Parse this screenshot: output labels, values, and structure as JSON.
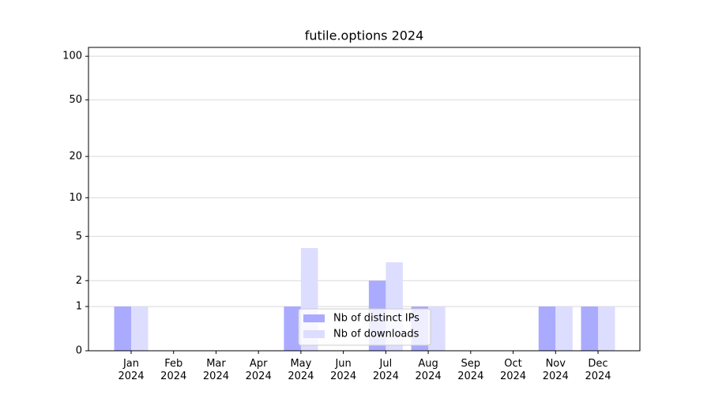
{
  "chart_data": {
    "type": "bar",
    "title": "futile.options 2024",
    "categories": [
      "Jan\n2024",
      "Feb\n2024",
      "Mar\n2024",
      "Apr\n2024",
      "May\n2024",
      "Jun\n2024",
      "Jul\n2024",
      "Aug\n2024",
      "Sep\n2024",
      "Oct\n2024",
      "Nov\n2024",
      "Dec\n2024"
    ],
    "series": [
      {
        "name": "Nb of distinct IPs",
        "color": "#aaaaff",
        "values": [
          1,
          0,
          0,
          0,
          1,
          0,
          2,
          1,
          0,
          0,
          1,
          1
        ]
      },
      {
        "name": "Nb of downloads",
        "color": "#ddddff",
        "values": [
          1,
          0,
          0,
          0,
          4,
          0,
          3,
          1,
          0,
          0,
          1,
          1
        ]
      }
    ],
    "yscale": "log1p",
    "ylim": [
      0,
      115
    ],
    "yticks": [
      0,
      1,
      2,
      5,
      10,
      20,
      50,
      100
    ],
    "grid": true,
    "legend": "lower center"
  }
}
